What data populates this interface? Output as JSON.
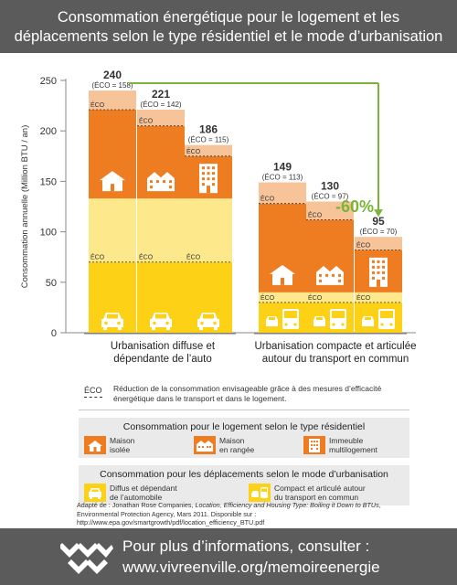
{
  "header": {
    "title_line1": "Consommation énergétique pour le logement et les",
    "title_line2": "déplacements selon le type résidentiel et le mode d’urbanisation"
  },
  "chart_data": {
    "type": "bar",
    "ylabel": "Consommation annuelle (Million BTU / an)",
    "ylim": [
      0,
      250
    ],
    "yticks": [
      0,
      50,
      100,
      150,
      200,
      250
    ],
    "groups": [
      {
        "label_line1": "Urbanisation diffuse et",
        "label_line2": "dépendante de l’auto"
      },
      {
        "label_line1": "Urbanisation compacte et articulée",
        "label_line2": "autour du transport en commun"
      }
    ],
    "bars": [
      {
        "group": 0,
        "housing": "Maison isolée",
        "transport": "Diffus et dépendant de l’automobile",
        "total": 240,
        "eco": 158,
        "eco_label": "(ÉCO = 158)",
        "transport_value": 133,
        "transport_eco": 70,
        "housing_value": 88
      },
      {
        "group": 0,
        "housing": "Maison en rangée",
        "transport": "Diffus et dépendant de l’automobile",
        "total": 221,
        "eco": 142,
        "eco_label": "(ÉCO = 142)",
        "transport_value": 133,
        "transport_eco": 70,
        "housing_value": 72
      },
      {
        "group": 0,
        "housing": "Immeuble multilogement",
        "transport": "Diffus et dépendant de l’automobile",
        "total": 186,
        "eco": 115,
        "eco_label": "(ÉCO = 115)",
        "transport_value": 133,
        "transport_eco": 70,
        "housing_value": 42
      },
      {
        "group": 1,
        "housing": "Maison isolée",
        "transport": "Compact et articulé autour du transport en commun",
        "total": 149,
        "eco": 113,
        "eco_label": "(ÉCO = 113)",
        "transport_value": 40,
        "transport_eco": 30,
        "housing_value": 88
      },
      {
        "group": 1,
        "housing": "Maison en rangée",
        "transport": "Compact et articulé autour du transport en commun",
        "total": 130,
        "eco": 97,
        "eco_label": "(ÉCO = 97)",
        "transport_value": 40,
        "transport_eco": 30,
        "housing_value": 72
      },
      {
        "group": 1,
        "housing": "Immeuble multilogement",
        "transport": "Compact et articulé autour du transport en commun",
        "total": 95,
        "eco": 70,
        "eco_label": "(ÉCO = 70)",
        "transport_value": 40,
        "transport_eco": 30,
        "housing_value": 42
      }
    ],
    "annotation": "-60%",
    "eco_marker": "ÉCO",
    "colors": {
      "housing": "#ee7d22",
      "housing_eco": "#f7c49a",
      "transport_auto": "#fdd116",
      "transport_auto_eco": "#fde98c",
      "transport_transit": "#fdd116",
      "transport_transit_eco": "#fde98c",
      "arrow": "#7ab539"
    }
  },
  "legend": {
    "eco_symbol": "ÉCO",
    "eco_text": "Réduction de la consommation envisageable grâce à des mesures d’efficacité énergétique dans le transport et dans le logement.",
    "housing_title": "Consommation pour le logement selon le type résidentiel",
    "housing_items": [
      {
        "line1": "Maison",
        "line2": "isolée",
        "icon": "house-icon"
      },
      {
        "line1": "Maison",
        "line2": "en rangée",
        "icon": "row-house-icon"
      },
      {
        "line1": "Immeuble",
        "line2": "multilogement",
        "icon": "apartment-icon"
      }
    ],
    "transport_title": "Consommation pour les déplacements selon le mode d’urbanisation",
    "transport_items": [
      {
        "line1": "Diffus et dépendant",
        "line2": "de l’automobile",
        "icon": "car-icon"
      },
      {
        "line1": "Compact et articulé autour",
        "line2": "du transport en commun",
        "icon": "car-bus-icon"
      }
    ]
  },
  "source": {
    "prefix": "Adapté de : Jonathan Rose Companies, ",
    "title": "Location, Efficiency and Housing Type: Boiling it Down to BTUs",
    "suffix": ", Environmental Protection Agency, Mars 2011. Disponible sur : http://www.epa.gov/smartgrowth/pdf/location_efficiency_BTU.pdf"
  },
  "footer": {
    "line1": "Pour plus d’informations, consulter :",
    "line2": "www.vivreenville.org/memoireenergie"
  }
}
